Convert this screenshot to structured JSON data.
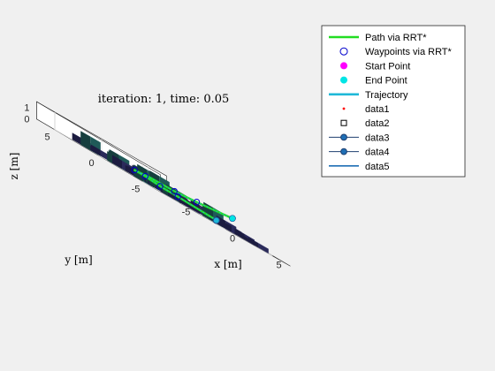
{
  "chart_data": {
    "type": "scatter",
    "title": "iteration: 1, time: 0.05",
    "xlabel": "x [m]",
    "ylabel": "y [m]",
    "zlabel": "z [m]",
    "x_ticks": [
      "-5",
      "0",
      "5"
    ],
    "y_ticks": [
      "5",
      "0",
      "-5"
    ],
    "z_ticks": [
      "1",
      "0"
    ],
    "xlim": [
      -7,
      7
    ],
    "ylim": [
      -7,
      7
    ],
    "zlim": [
      0,
      1.5
    ],
    "grid": true,
    "legend_position": "top-right",
    "colors": {
      "path": "#22dd22",
      "waypoint_edge": "#0000cc",
      "start": "#ff00ff",
      "end": "#00e5e5",
      "trajectory": "#1fb8d8",
      "data1": "#ff0000",
      "data5": "#1f6fb5",
      "obstacle_dark": "#2a2a5a",
      "obstacle_teal": "#1f5a58"
    },
    "legend": [
      {
        "label": "Path via RRT*",
        "marker": "thick-line",
        "color": "#22dd22"
      },
      {
        "label": "Waypoints via RRT*",
        "marker": "open-circle",
        "color": "#0000cc"
      },
      {
        "label": "Start Point",
        "marker": "filled-circle",
        "color": "#ff00ff"
      },
      {
        "label": "End Point",
        "marker": "filled-circle",
        "color": "#00e5e5"
      },
      {
        "label": "Trajectory",
        "marker": "thick-line",
        "color": "#1fb8d8"
      },
      {
        "label": "data1",
        "marker": "dot",
        "color": "#ff0000"
      },
      {
        "label": "data2",
        "marker": "open-square",
        "color": "#000000"
      },
      {
        "label": "data3",
        "marker": "line-circle",
        "color": "#1f6fb5"
      },
      {
        "label": "data4",
        "marker": "line-circle",
        "color": "#1f6fb5"
      },
      {
        "label": "data5",
        "marker": "line",
        "color": "#1f6fb5"
      }
    ],
    "path": [
      [
        -0.5,
        -6.5,
        0.3
      ],
      [
        -1.5,
        -3.5,
        0.4
      ],
      [
        -1.8,
        -1.5,
        0.4
      ],
      [
        -1.5,
        0.5,
        0.5
      ],
      [
        -1.7,
        1.5,
        0.5
      ],
      [
        -0.5,
        2.5,
        0.5
      ],
      [
        1,
        2.5,
        0.6
      ],
      [
        2.5,
        3,
        0.6
      ],
      [
        4.5,
        3.5,
        0.6
      ],
      [
        5,
        1.5,
        0.8
      ],
      [
        6,
        -1.5,
        1.2
      ]
    ],
    "waypoints": [
      [
        -0.5,
        -6.5,
        0.3
      ],
      [
        -1.7,
        -3.4,
        0.4
      ],
      [
        -1.8,
        -1.5,
        0.4
      ],
      [
        -1.5,
        0.5,
        0.5
      ],
      [
        -1.7,
        1.5,
        0.5
      ],
      [
        4.5,
        3.5,
        0.6
      ],
      [
        5,
        1.5,
        0.8
      ],
      [
        6,
        -1.5,
        1.2
      ]
    ],
    "start_point": [
      -0.5,
      -6.5,
      0.3
    ],
    "end_point": [
      6,
      -1.5,
      1.2
    ],
    "obstacles": [
      [
        -5,
        3,
        1.2,
        "teal"
      ],
      [
        -4,
        5,
        0.6,
        "dark"
      ],
      [
        -3,
        4,
        0.4,
        "dark"
      ],
      [
        -2,
        5,
        0.5,
        "dark"
      ],
      [
        -5,
        0,
        0.8,
        "teal"
      ],
      [
        -3.5,
        1,
        0.7,
        "dark"
      ],
      [
        -4,
        -1,
        0.5,
        "dark"
      ],
      [
        -2.5,
        -2,
        0.3,
        "dark"
      ],
      [
        -5,
        -3,
        1.0,
        "teal"
      ],
      [
        -3,
        -4,
        0.6,
        "dark"
      ],
      [
        -4,
        -5,
        0.4,
        "dark"
      ],
      [
        0,
        5,
        1.0,
        "teal"
      ],
      [
        1.5,
        4,
        0.8,
        "dark"
      ],
      [
        3,
        5,
        1.1,
        "teal"
      ],
      [
        4.5,
        4.5,
        0.4,
        "dark"
      ],
      [
        0,
        3,
        0.5,
        "dark"
      ],
      [
        1,
        1.5,
        1.2,
        "teal"
      ],
      [
        2.5,
        1,
        0.6,
        "dark"
      ],
      [
        4,
        0,
        0.7,
        "dark"
      ],
      [
        5.5,
        -0.5,
        0.3,
        "dark"
      ],
      [
        0,
        -1,
        0.8,
        "teal"
      ],
      [
        1.5,
        -2,
        0.5,
        "dark"
      ],
      [
        3,
        -2.5,
        1.2,
        "teal"
      ],
      [
        4.5,
        -3,
        0.5,
        "dark"
      ],
      [
        6,
        -3.5,
        0.3,
        "dark"
      ],
      [
        -1,
        -4,
        0.6,
        "dark"
      ],
      [
        0.5,
        -5,
        1.0,
        "teal"
      ],
      [
        2,
        -5,
        0.7,
        "dark"
      ],
      [
        3.5,
        -5.5,
        0.5,
        "dark"
      ],
      [
        5,
        -5.5,
        0.4,
        "dark"
      ],
      [
        -2,
        3,
        0.9,
        "teal"
      ],
      [
        2,
        -0.5,
        0.4,
        "dark"
      ],
      [
        -0.5,
        0.5,
        0.5,
        "dark"
      ],
      [
        -1,
        -2.5,
        0.9,
        "teal"
      ],
      [
        2.5,
        3.5,
        0.6,
        "teal"
      ]
    ]
  }
}
